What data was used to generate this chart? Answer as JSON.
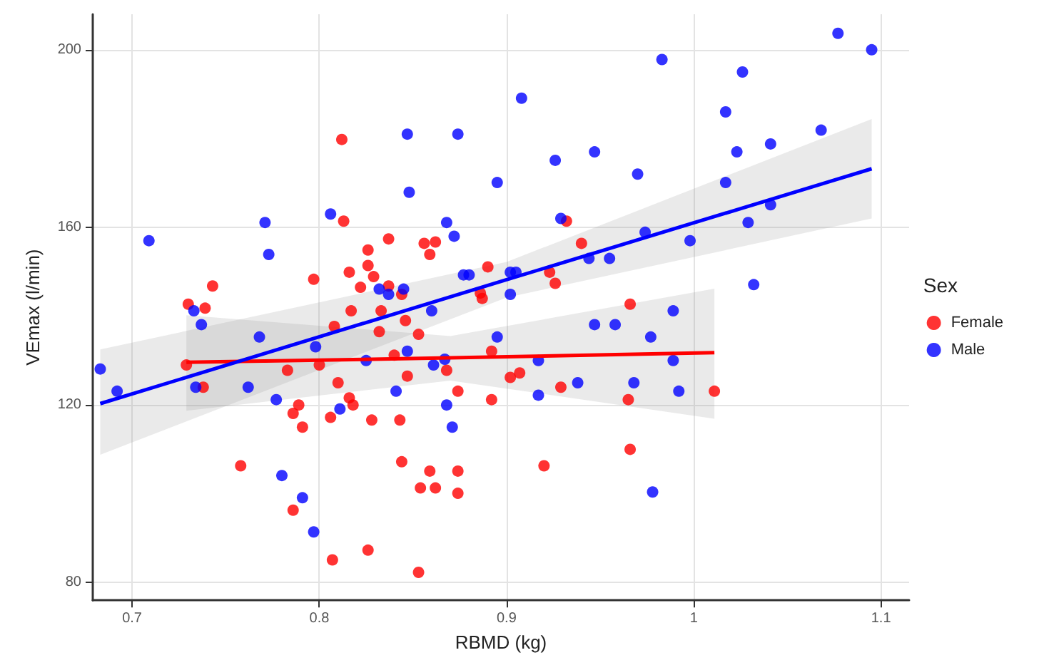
{
  "chart_data": {
    "type": "scatter",
    "xlabel": "RBMD (kg)",
    "ylabel": "VEmax (l/min)",
    "legend_title": "Sex",
    "legend": "right",
    "grid": true,
    "xlim": [
      0.679,
      1.115
    ],
    "ylim": [
      76,
      208
    ],
    "xticks": [
      0.7,
      0.8,
      0.9,
      1.0,
      1.1
    ],
    "yticks": [
      80,
      120,
      160,
      200
    ],
    "series": [
      {
        "name": "Female",
        "color": "#ff0000",
        "marker": "circle",
        "x": [
          0.812,
          0.813,
          0.837,
          0.826,
          0.826,
          0.829,
          0.816,
          0.822,
          0.837,
          0.797,
          0.856,
          0.862,
          0.859,
          0.743,
          0.73,
          0.739,
          0.817,
          0.833,
          0.844,
          0.846,
          0.808,
          0.832,
          0.853,
          0.89,
          0.886,
          0.887,
          0.892,
          0.84,
          0.729,
          0.783,
          0.8,
          0.81,
          0.738,
          0.847,
          0.868,
          0.874,
          0.892,
          0.789,
          0.786,
          0.791,
          0.806,
          0.816,
          0.818,
          0.828,
          0.843,
          0.758,
          0.844,
          0.859,
          0.874,
          0.854,
          0.862,
          0.874,
          0.786,
          0.826,
          0.807,
          0.853,
          0.932,
          0.94,
          0.923,
          0.926,
          0.966,
          0.902,
          0.907,
          0.929,
          0.965,
          1.011,
          0.966,
          0.92
        ],
        "values": [
          179.8,
          161.4,
          157.4,
          154.9,
          151.4,
          148.9,
          149.9,
          146.5,
          146.8,
          148.3,
          156.4,
          156.7,
          153.9,
          146.8,
          142.7,
          141.8,
          141.2,
          141.2,
          144.9,
          139.0,
          137.7,
          136.5,
          135.9,
          151.1,
          145.2,
          144.0,
          132.1,
          131.2,
          129.0,
          127.8,
          129.0,
          125.0,
          124.0,
          126.5,
          127.8,
          123.1,
          121.2,
          120.0,
          118.1,
          115.0,
          117.2,
          121.6,
          120.0,
          116.6,
          116.6,
          106.3,
          107.2,
          105.1,
          105.1,
          101.3,
          101.3,
          100.1,
          96.3,
          87.3,
          85.1,
          82.3,
          161.4,
          156.4,
          149.9,
          147.4,
          142.7,
          126.2,
          127.2,
          124.0,
          121.2,
          123.1,
          110.0,
          106.3
        ]
      },
      {
        "name": "Male",
        "color": "#0000ff",
        "marker": "circle",
        "x": [
          0.683,
          0.692,
          0.709,
          0.771,
          0.773,
          0.733,
          0.737,
          0.768,
          0.798,
          0.806,
          0.847,
          0.874,
          0.848,
          0.895,
          0.868,
          0.872,
          0.832,
          0.837,
          0.845,
          0.86,
          0.877,
          0.88,
          0.895,
          0.847,
          0.825,
          0.861,
          0.867,
          0.734,
          0.762,
          0.777,
          0.811,
          0.841,
          0.868,
          0.871,
          0.78,
          0.791,
          0.797,
          0.908,
          0.926,
          0.947,
          0.983,
          0.97,
          1.017,
          1.026,
          1.023,
          1.041,
          1.068,
          1.077,
          1.095,
          0.929,
          0.974,
          1.017,
          1.041,
          1.029,
          0.998,
          0.944,
          0.955,
          0.902,
          0.905,
          0.902,
          0.917,
          0.947,
          0.958,
          0.977,
          0.989,
          0.989,
          0.938,
          0.968,
          0.992,
          0.917,
          0.978,
          1.032
        ],
        "values": [
          128.1,
          123.1,
          157.0,
          161.1,
          153.9,
          141.2,
          138.1,
          135.3,
          133.1,
          163.0,
          181.0,
          181.0,
          167.9,
          170.1,
          161.1,
          158.0,
          146.1,
          144.9,
          146.1,
          141.2,
          149.3,
          149.3,
          135.3,
          132.1,
          130.0,
          129.0,
          130.3,
          124.0,
          124.0,
          121.2,
          119.1,
          123.1,
          120.0,
          115.0,
          104.1,
          99.1,
          91.4,
          189.1,
          175.1,
          177.0,
          197.8,
          172.0,
          186.0,
          195.0,
          177.0,
          178.8,
          181.9,
          203.7,
          200.0,
          162.0,
          158.9,
          170.1,
          165.1,
          161.1,
          157.0,
          153.0,
          153.0,
          149.9,
          149.9,
          144.9,
          130.0,
          138.1,
          138.1,
          135.3,
          141.2,
          130.0,
          125.0,
          125.0,
          123.1,
          122.2,
          100.4,
          147.1
        ]
      },
      {
        "type": "line",
        "color": "#ff0000",
        "marker": "none",
        "x": [
          0.729,
          0.87,
          1.011
        ],
        "values": [
          129.6,
          130.6,
          131.8
        ],
        "lower": [
          118.7,
          125.5,
          116.9
        ],
        "upper": [
          140.2,
          135.5,
          146.2
        ]
      },
      {
        "type": "line",
        "color": "#0000ff",
        "marker": "none",
        "x": [
          0.683,
          0.9,
          1.095
        ],
        "values": [
          120.3,
          148.2,
          173.2
        ],
        "lower": [
          108.8,
          144.2,
          162.0
        ],
        "upper": [
          132.5,
          152.2,
          184.4
        ]
      }
    ]
  }
}
